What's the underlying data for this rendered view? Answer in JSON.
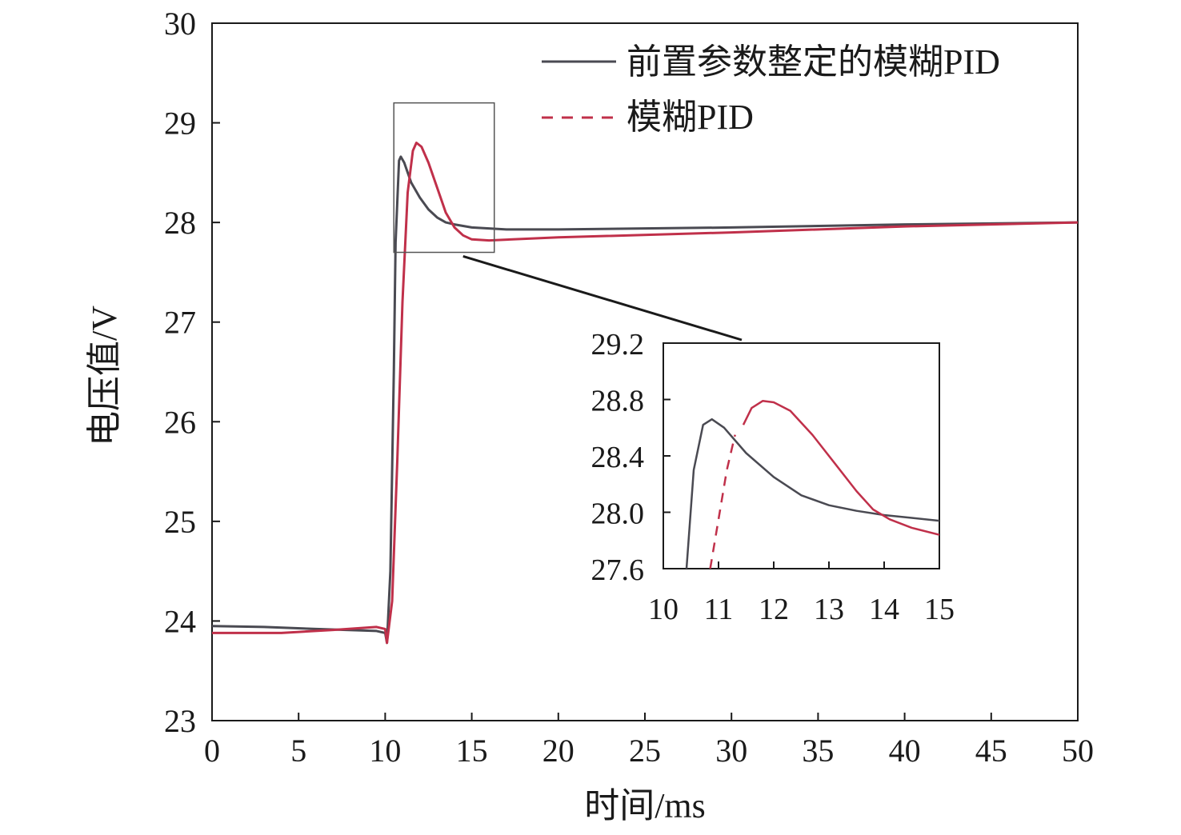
{
  "chart_data": {
    "type": "line",
    "xlabel": "时间/ms",
    "ylabel": "电压值/V",
    "xlim": [
      0,
      50
    ],
    "ylim": [
      23,
      30
    ],
    "xticks": [
      "0",
      "5",
      "10",
      "15",
      "20",
      "25",
      "30",
      "35",
      "40",
      "45",
      "50"
    ],
    "yticks": [
      "23",
      "24",
      "25",
      "26",
      "27",
      "28",
      "29",
      "30"
    ],
    "legend_position": "top-right",
    "series": [
      {
        "name": "前置参数整定的模糊PID",
        "color": "#4a4a52",
        "style": "solid",
        "points": [
          [
            0,
            23.95
          ],
          [
            3,
            23.94
          ],
          [
            6,
            23.92
          ],
          [
            9.5,
            23.9
          ],
          [
            10.0,
            23.88
          ],
          [
            10.1,
            23.78
          ],
          [
            10.3,
            24.5
          ],
          [
            10.5,
            26.5
          ],
          [
            10.6,
            27.8
          ],
          [
            10.8,
            28.62
          ],
          [
            10.9,
            28.66
          ],
          [
            11.1,
            28.6
          ],
          [
            11.5,
            28.4
          ],
          [
            12,
            28.25
          ],
          [
            12.5,
            28.13
          ],
          [
            13,
            28.05
          ],
          [
            13.5,
            28.0
          ],
          [
            14,
            27.98
          ],
          [
            15,
            27.95
          ],
          [
            17,
            27.93
          ],
          [
            20,
            27.93
          ],
          [
            30,
            27.95
          ],
          [
            40,
            27.98
          ],
          [
            50,
            28.0
          ]
        ]
      },
      {
        "name": "模糊PID",
        "color": "#c0304a",
        "style": "solid",
        "points": [
          [
            0,
            23.88
          ],
          [
            4,
            23.88
          ],
          [
            7,
            23.91
          ],
          [
            9.5,
            23.94
          ],
          [
            10.0,
            23.92
          ],
          [
            10.1,
            23.78
          ],
          [
            10.4,
            24.2
          ],
          [
            10.7,
            25.6
          ],
          [
            11.0,
            27.2
          ],
          [
            11.3,
            28.3
          ],
          [
            11.6,
            28.72
          ],
          [
            11.8,
            28.8
          ],
          [
            12.1,
            28.76
          ],
          [
            12.5,
            28.6
          ],
          [
            13,
            28.35
          ],
          [
            13.5,
            28.1
          ],
          [
            14,
            27.95
          ],
          [
            14.5,
            27.87
          ],
          [
            15,
            27.83
          ],
          [
            16,
            27.82
          ],
          [
            20,
            27.85
          ],
          [
            30,
            27.9
          ],
          [
            40,
            27.96
          ],
          [
            50,
            28.0
          ]
        ]
      }
    ],
    "inset": {
      "xlim": [
        10,
        15
      ],
      "ylim": [
        27.6,
        29.2
      ],
      "xticks": [
        "10",
        "11",
        "12",
        "13",
        "14",
        "15"
      ],
      "yticks": [
        "27.6",
        "28.0",
        "28.4",
        "28.8",
        "29.2"
      ],
      "series": [
        {
          "name": "前置参数整定的模糊PID",
          "color": "#4a4a52",
          "style": "solid",
          "points": [
            [
              10.42,
              27.6
            ],
            [
              10.55,
              28.3
            ],
            [
              10.72,
              28.62
            ],
            [
              10.88,
              28.66
            ],
            [
              11.1,
              28.6
            ],
            [
              11.5,
              28.42
            ],
            [
              12,
              28.25
            ],
            [
              12.5,
              28.12
            ],
            [
              13,
              28.05
            ],
            [
              13.5,
              28.01
            ],
            [
              14,
              27.98
            ],
            [
              14.5,
              27.96
            ],
            [
              15,
              27.94
            ]
          ]
        },
        {
          "name": "模糊PID",
          "color": "#c0304a",
          "style": "solid",
          "points": [
            [
              11.45,
              28.62
            ],
            [
              11.6,
              28.74
            ],
            [
              11.8,
              28.79
            ],
            [
              12.0,
              28.78
            ],
            [
              12.3,
              28.72
            ],
            [
              12.7,
              28.55
            ],
            [
              13.1,
              28.35
            ],
            [
              13.5,
              28.15
            ],
            [
              13.8,
              28.02
            ],
            [
              14.1,
              27.95
            ],
            [
              14.5,
              27.89
            ],
            [
              15,
              27.84
            ]
          ]
        },
        {
          "name": "",
          "color": "#c0304a",
          "style": "dashed",
          "points": [
            [
              10.85,
              27.6
            ],
            [
              11.0,
              27.95
            ],
            [
              11.15,
              28.3
            ],
            [
              11.3,
              28.55
            ]
          ]
        }
      ]
    }
  }
}
